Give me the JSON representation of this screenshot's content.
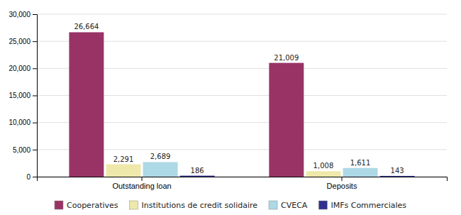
{
  "chart_data": {
    "type": "bar",
    "categories": [
      "Outstanding loan",
      "Deposits"
    ],
    "series": [
      {
        "name": "Cooperatives",
        "color": "#993366",
        "values": [
          26664,
          21009
        ],
        "value_labels": [
          "26,664",
          "21,009"
        ]
      },
      {
        "name": "Institutions de credit solidaire",
        "color": "#EEE8AA",
        "values": [
          2291,
          1008
        ],
        "value_labels": [
          "2,291",
          "1,008"
        ]
      },
      {
        "name": "CVECA",
        "color": "#ADD8E6",
        "values": [
          2689,
          1611
        ],
        "value_labels": [
          "2,689",
          "1,611"
        ]
      },
      {
        "name": "IMFs Commerciales",
        "color": "#2F2F8F",
        "values": [
          186,
          143
        ],
        "value_labels": [
          "186",
          "143"
        ]
      }
    ],
    "ylim": [
      0,
      30000
    ],
    "yticks": [
      0,
      {
        "value": 5000,
        "label": "5,000"
      },
      {
        "value": 10000,
        "label": "10,000"
      },
      {
        "value": 15000,
        "label": "15,000"
      },
      {
        "value": 20000,
        "label": "20,000"
      },
      {
        "value": 25000,
        "label": "25,000"
      },
      {
        "value": 30000,
        "label": "30,000"
      }
    ],
    "grid": true,
    "data_labels": true,
    "legend": "bottom"
  }
}
